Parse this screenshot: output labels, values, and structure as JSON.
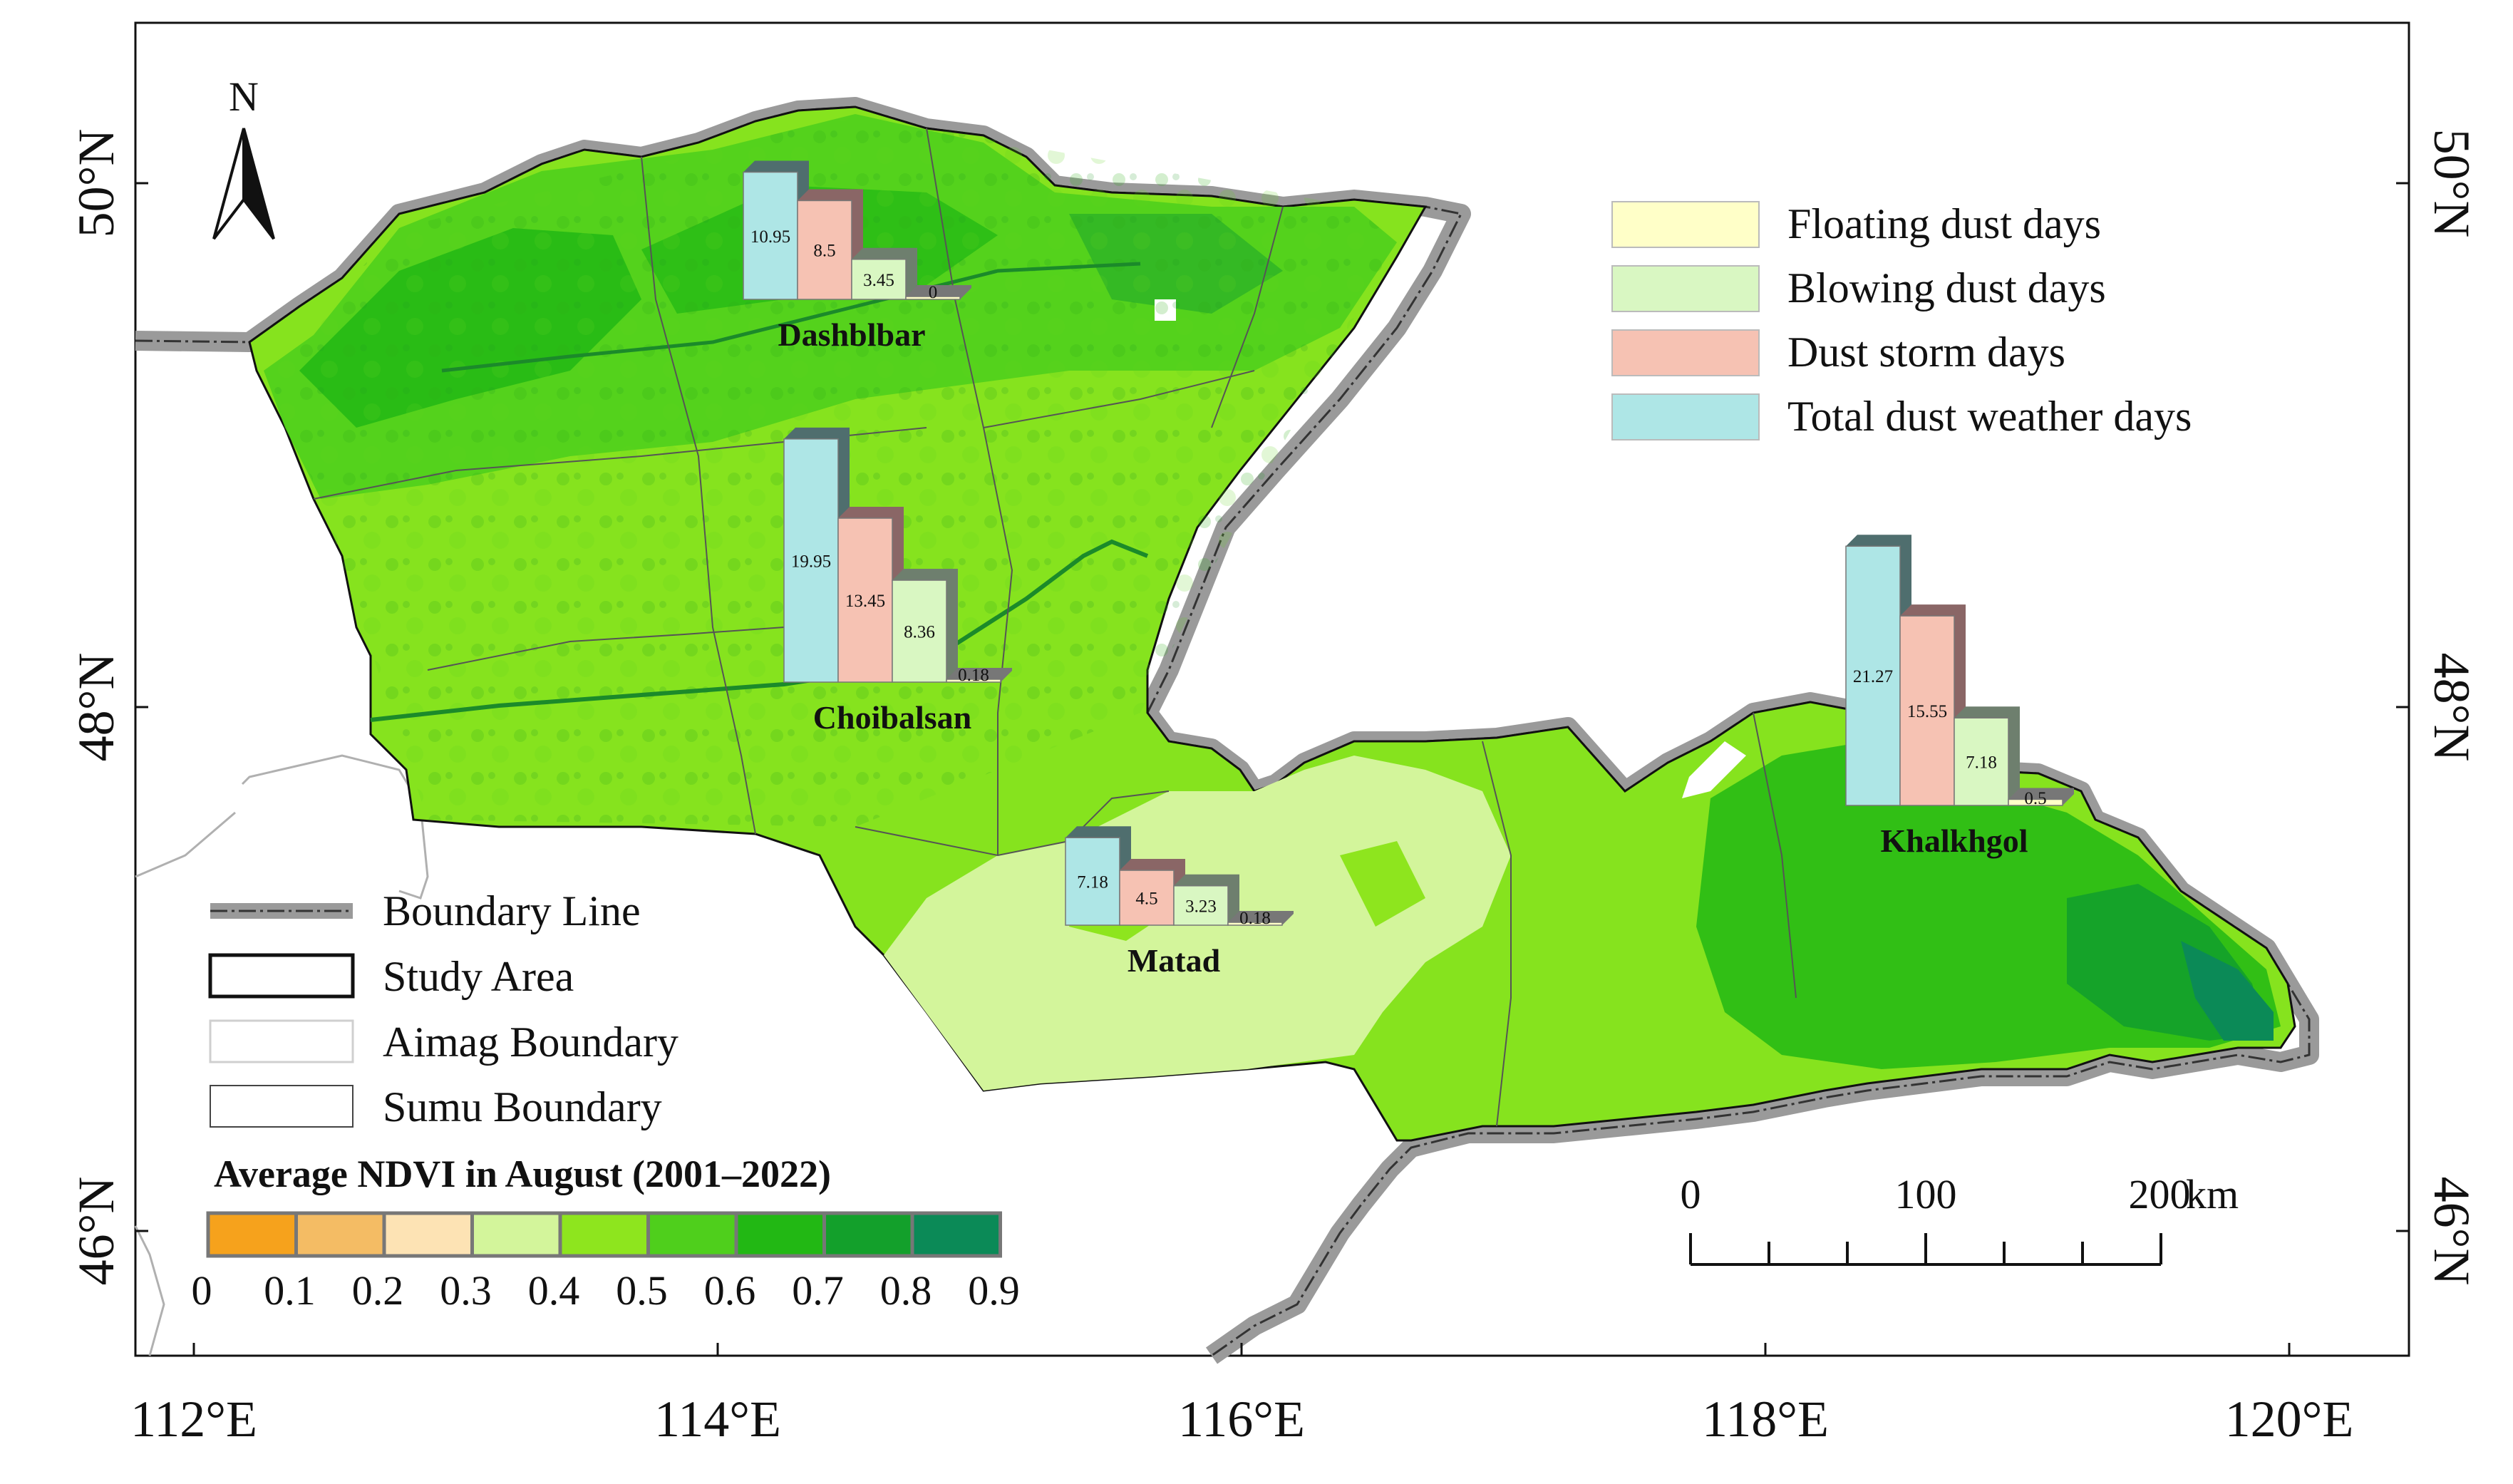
{
  "map": {
    "lat_labels": [
      "50°N",
      "48°N",
      "46°N"
    ],
    "lon_labels": [
      "112°E",
      "114°E",
      "116°E",
      "118°E",
      "120°E"
    ],
    "north_label": "N",
    "colors": {
      "boundary_halo": "#9a9a9a",
      "ndvi_low": "#f5a623",
      "ndvi_mid": "#86e31e",
      "ndvi_high": "#0b8a57",
      "floating": "#ffffc8",
      "blowing": "#d9f7c2",
      "storm": "#f6c2b3",
      "total": "#aee6e6"
    }
  },
  "legend_bars": {
    "items": [
      "Floating dust days",
      "Blowing dust days",
      "Dust storm days",
      "Total dust weather days"
    ]
  },
  "legend_lines": {
    "items": [
      "Boundary Line",
      "Study Area",
      "Aimag Boundary",
      "Sumu Boundary"
    ]
  },
  "ndvi_legend": {
    "title": "Average NDVI in August (2001–2022)",
    "ticks": [
      "0",
      "0.1",
      "0.2",
      "0.3",
      "0.4",
      "0.5",
      "0.6",
      "0.7",
      "0.8",
      "0.9"
    ],
    "colors": [
      "#f6a21c",
      "#f4bc64",
      "#fde3b4",
      "#d3f59b",
      "#8ee51e",
      "#4fcf1c",
      "#22b814",
      "#13a02b",
      "#0b8a57"
    ]
  },
  "scale_bar": {
    "labels": [
      "0",
      "100",
      "200"
    ],
    "unit": "km"
  },
  "chart_data": {
    "type": "bar",
    "title": "",
    "series_names": [
      "Total dust weather days",
      "Dust storm days",
      "Blowing dust days",
      "Floating dust days"
    ],
    "stations": [
      {
        "name": "Dashblbar",
        "values": [
          10.95,
          8.5,
          3.45,
          0
        ]
      },
      {
        "name": "Choibalsan",
        "values": [
          19.95,
          13.45,
          8.36,
          0.18
        ]
      },
      {
        "name": "Matad",
        "values": [
          7.18,
          4.5,
          3.23,
          0.18
        ]
      },
      {
        "name": "Khalkhgol",
        "values": [
          21.27,
          15.55,
          7.18,
          0.5
        ]
      }
    ]
  }
}
